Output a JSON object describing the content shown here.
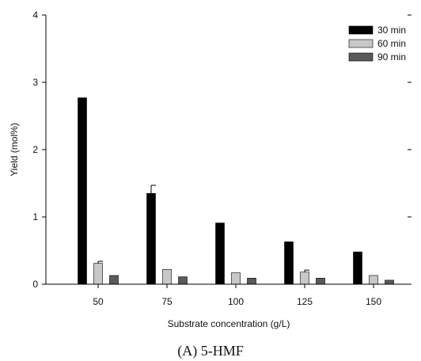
{
  "chart_data": {
    "type": "bar",
    "title": "(A) 5-HMF",
    "xlabel": "Substrate concentration (g/L)",
    "ylabel": "Yield (mol%)",
    "categories": [
      "50",
      "75",
      "100",
      "125",
      "150"
    ],
    "ylim": [
      0,
      4
    ],
    "yticks": [
      "0",
      "1",
      "2",
      "3",
      "4"
    ],
    "grid": false,
    "legend_position": "top-right",
    "series": [
      {
        "name": "30 min",
        "color": "#000000",
        "values": [
          2.77,
          1.35,
          0.91,
          0.63,
          0.48
        ],
        "errors": [
          0,
          0.12,
          0,
          0,
          0
        ]
      },
      {
        "name": "60 min",
        "color": "#c8c8c8",
        "values": [
          0.31,
          0.22,
          0.17,
          0.18,
          0.13
        ],
        "errors": [
          0.03,
          0,
          0,
          0.03,
          0
        ]
      },
      {
        "name": "90 min",
        "color": "#5a5a5a",
        "values": [
          0.13,
          0.11,
          0.09,
          0.09,
          0.06
        ],
        "errors": [
          0,
          0,
          0,
          0,
          0
        ]
      }
    ]
  }
}
